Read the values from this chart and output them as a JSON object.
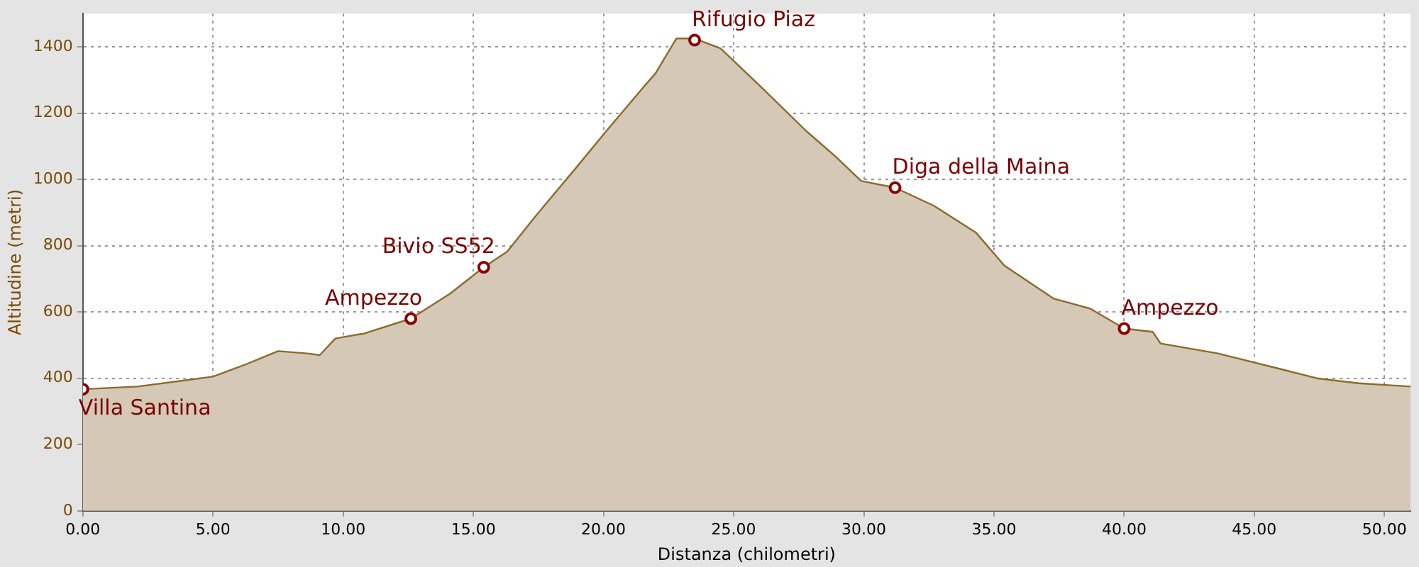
{
  "chart_data": {
    "type": "area",
    "xlabel": "Distanza (chilometri)",
    "ylabel": "Altitudine (metri)",
    "xlim": [
      0,
      51
    ],
    "ylim": [
      0,
      1500
    ],
    "xticks": [
      {
        "value": 0,
        "label": "0.00"
      },
      {
        "value": 5,
        "label": "5.00"
      },
      {
        "value": 10,
        "label": "10.00"
      },
      {
        "value": 15,
        "label": "15.00"
      },
      {
        "value": 20,
        "label": "20.00"
      },
      {
        "value": 25,
        "label": "25.00"
      },
      {
        "value": 30,
        "label": "30.00"
      },
      {
        "value": 35,
        "label": "35.00"
      },
      {
        "value": 40,
        "label": "40.00"
      },
      {
        "value": 45,
        "label": "45.00"
      },
      {
        "value": 50,
        "label": "50.00"
      }
    ],
    "yticks": [
      0,
      200,
      400,
      600,
      800,
      1000,
      1200,
      1400
    ],
    "grid": true,
    "legend": false,
    "series": [
      {
        "color": "#8b6a2a",
        "x": [
          0,
          2.1,
          5,
          6.2,
          7.5,
          8.6,
          9.1,
          9.7,
          10.8,
          12.6,
          14.1,
          15.4,
          16.3,
          17.4,
          19,
          20.1,
          21.5,
          22,
          22.8,
          23.5,
          24.5,
          26.1,
          27.8,
          28.9,
          29.9,
          31.2,
          32.7,
          34.3,
          35.4,
          37.3,
          38.7,
          40,
          41.1,
          41.4,
          43.6,
          45.8,
          47.4,
          49,
          51
        ],
        "values": [
          367,
          375,
          405,
          440,
          482,
          475,
          470,
          520,
          535,
          580,
          655,
          735,
          782,
          890,
          1040,
          1145,
          1275,
          1320,
          1425,
          1425,
          1395,
          1275,
          1145,
          1070,
          995,
          975,
          920,
          840,
          740,
          640,
          610,
          550,
          540,
          505,
          475,
          432,
          400,
          385,
          375
        ]
      },
      {
        "type": "scatter",
        "color": "#8b0000",
        "marker": "circle",
        "x": [
          0,
          12.6,
          15.4,
          23.5,
          31.2,
          40
        ],
        "values": [
          367,
          580,
          735,
          1420,
          975,
          550
        ]
      }
    ],
    "annotations": [
      {
        "text": "Villa Santina",
        "x": 0,
        "y": 367
      },
      {
        "text": "Ampezzo",
        "x": 12.6,
        "y": 580
      },
      {
        "text": "Bivio SS52",
        "x": 15.4,
        "y": 735
      },
      {
        "text": "Rifugio Piaz",
        "x": 23.5,
        "y": 1420
      },
      {
        "text": "Diga della Maina",
        "x": 31.2,
        "y": 975
      },
      {
        "text": "Ampezzo",
        "x": 40,
        "y": 550
      }
    ]
  }
}
